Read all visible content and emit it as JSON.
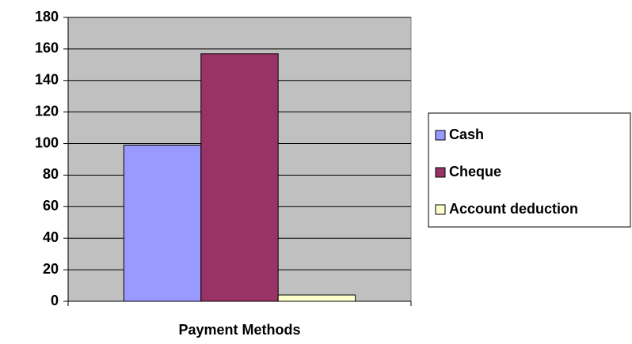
{
  "chart_data": {
    "type": "bar",
    "categories": [
      "Payment Methods"
    ],
    "series": [
      {
        "name": "Cash",
        "color": "#9999ff",
        "values": [
          99
        ]
      },
      {
        "name": "Cheque",
        "color": "#993366",
        "values": [
          157
        ]
      },
      {
        "name": "Account deduction",
        "color": "#ffffcc",
        "values": [
          4
        ]
      }
    ],
    "ylim": [
      0,
      180
    ],
    "yticks": [
      0,
      20,
      40,
      60,
      80,
      100,
      120,
      140,
      160,
      180
    ],
    "grid": true,
    "legend": "right",
    "plot_background": "#c0c0c0"
  }
}
